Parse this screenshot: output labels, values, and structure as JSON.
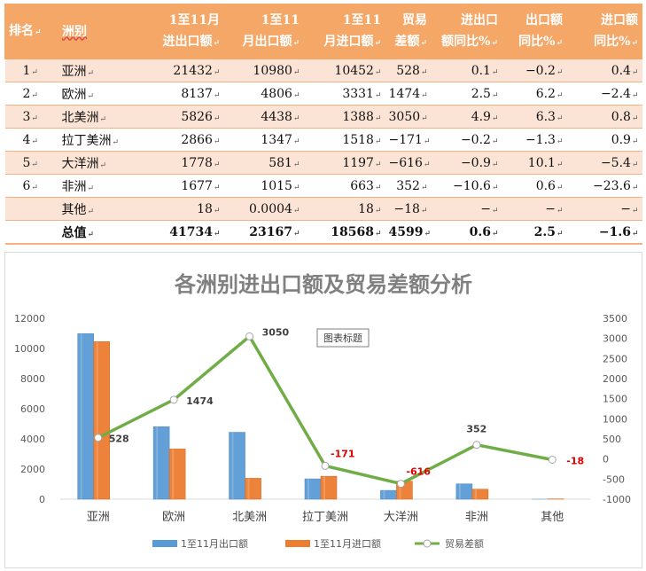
{
  "table": {
    "headers": [
      {
        "text": "排名",
        "mark": "↵"
      },
      {
        "text": "洲别",
        "mark": ""
      },
      {
        "text": "1至11月 进出口额",
        "mark": "↵"
      },
      {
        "text": "1至11 月出口额",
        "mark": "↵"
      },
      {
        "text": "1至11 月进口额",
        "mark": "↵"
      },
      {
        "text": "贸易 差额",
        "mark": "↵"
      },
      {
        "text": "进出口 额同比%",
        "mark": "↵"
      },
      {
        "text": "出口额 同比%",
        "mark": "↵"
      },
      {
        "text": "进口额 同比%",
        "mark": "↵"
      }
    ],
    "rows": [
      {
        "rank": "1",
        "name": "亚洲",
        "total": "21432",
        "export": "10980",
        "import": "10452",
        "balance": "528",
        "yoy_total": "0.1",
        "yoy_export": "-0.2",
        "yoy_import": "0.4"
      },
      {
        "rank": "2",
        "name": "欧洲",
        "total": "8137",
        "export": "4806",
        "import": "3331",
        "balance": "1474",
        "yoy_total": "2.5",
        "yoy_export": "6.2",
        "yoy_import": "-2.4"
      },
      {
        "rank": "3",
        "name": "北美洲",
        "total": "5826",
        "export": "4438",
        "import": "1388",
        "balance": "3050",
        "yoy_total": "4.9",
        "yoy_export": "6.3",
        "yoy_import": "0.8"
      },
      {
        "rank": "4",
        "name": "拉丁美洲",
        "total": "2866",
        "export": "1347",
        "import": "1518",
        "balance": "-171",
        "yoy_total": "-0.2",
        "yoy_export": "-1.3",
        "yoy_import": "0.9"
      },
      {
        "rank": "5",
        "name": "大洋洲",
        "total": "1778",
        "export": "581",
        "import": "1197",
        "balance": "-616",
        "yoy_total": "-0.9",
        "yoy_export": "10.1",
        "yoy_import": "-5.4"
      },
      {
        "rank": "6",
        "name": "非洲",
        "total": "1677",
        "export": "1015",
        "import": "663",
        "balance": "352",
        "yoy_total": "-10.6",
        "yoy_export": "0.6",
        "yoy_import": "-23.6"
      },
      {
        "rank": "",
        "name": "其他",
        "total": "18",
        "export": "0.0004",
        "import": "18",
        "balance": "-18",
        "yoy_total": "-",
        "yoy_export": "-",
        "yoy_import": "-"
      },
      {
        "rank": "",
        "name": "总值",
        "total": "41734",
        "export": "23167",
        "import": "18568",
        "balance": "4599",
        "yoy_total": "0.6",
        "yoy_export": "2.5",
        "yoy_import": "-1.6"
      }
    ],
    "cell_mark": "↵"
  },
  "chart_data": {
    "type": "bar",
    "title": "各洲别进出口额及贸易差额分析",
    "floating_label": "图表标题",
    "categories": [
      "亚洲",
      "欧洲",
      "北美洲",
      "拉丁美洲",
      "大洋洲",
      "非洲",
      "其他"
    ],
    "series": [
      {
        "name": "1至11月出口额",
        "type": "bar",
        "axis": "left",
        "color": "#5b9bd5",
        "values": [
          10980,
          4806,
          4438,
          1347,
          581,
          1015,
          0.0004
        ]
      },
      {
        "name": "1至11月进口额",
        "type": "bar",
        "axis": "left",
        "color": "#ed7d31",
        "values": [
          10452,
          3331,
          1388,
          1518,
          1197,
          663,
          18
        ]
      },
      {
        "name": "贸易差额",
        "type": "line",
        "axis": "right",
        "color": "#70ad47",
        "values": [
          528,
          1474,
          3050,
          -171,
          -616,
          352,
          -18
        ]
      }
    ],
    "left_axis": {
      "min": 0,
      "max": 12000,
      "ticks": [
        "0",
        "2000",
        "4000",
        "6000",
        "8000",
        "10000",
        "12000"
      ]
    },
    "right_axis": {
      "min": -1000,
      "max": 3500,
      "ticks": [
        "-1000",
        "-500",
        "0",
        "500",
        "1000",
        "1500",
        "2000",
        "2500",
        "3000",
        "3500"
      ]
    },
    "data_labels": [
      "528",
      "1474",
      "3050",
      "-171",
      "-616",
      "352",
      "-18"
    ],
    "positive_label_color": "#404040",
    "negative_label_color": "#e00000",
    "legend_position": "bottom"
  }
}
